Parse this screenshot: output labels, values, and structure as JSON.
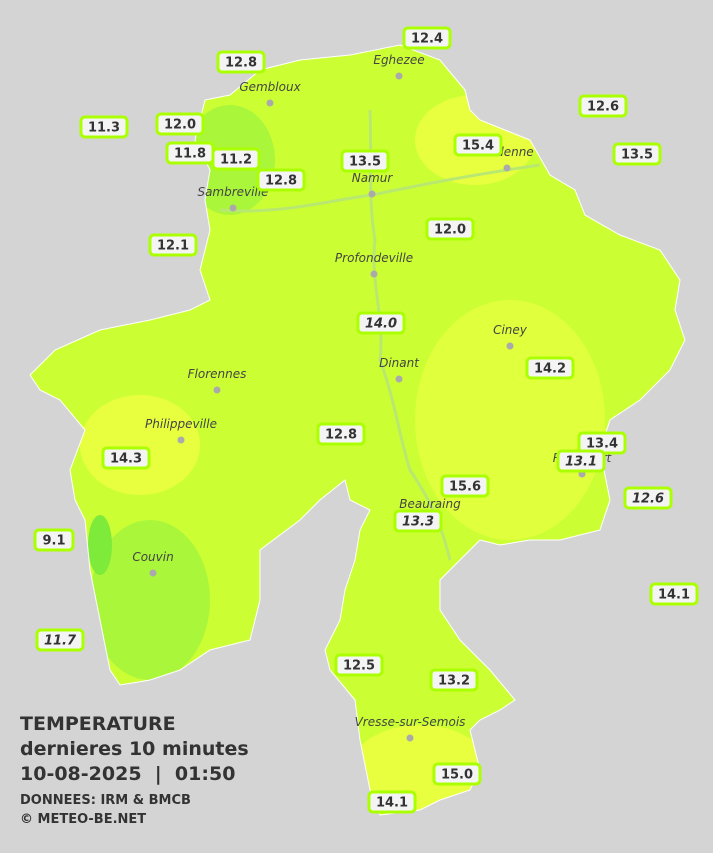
{
  "title": {
    "lines": [
      "TEMPERATURE",
      "dernieres 10 minutes",
      "10-08-2025  |  01:50"
    ],
    "credits": [
      "DONNEES: IRM & BMCB",
      "© METEO-BE.NET"
    ]
  },
  "cities": [
    "Eghezee",
    "Gembloux",
    "Andenne",
    "Namur",
    "Sambreville",
    "Profondeville",
    "Ciney",
    "Dinant",
    "Florennes",
    "Philippeville",
    "Rochefort",
    "Beauraing",
    "Couvin",
    "Vresse-sur-Semois"
  ],
  "stations": [
    {
      "value": "12.4",
      "italic": false
    },
    {
      "value": "12.8",
      "italic": false
    },
    {
      "value": "12.6",
      "italic": false
    },
    {
      "value": "11.3",
      "italic": false
    },
    {
      "value": "12.0",
      "italic": false
    },
    {
      "value": "15.4",
      "italic": false
    },
    {
      "value": "13.5",
      "italic": false
    },
    {
      "value": "11.8",
      "italic": false
    },
    {
      "value": "11.2",
      "italic": false
    },
    {
      "value": "13.5",
      "italic": false
    },
    {
      "value": "12.8",
      "italic": false
    },
    {
      "value": "12.0",
      "italic": false
    },
    {
      "value": "12.1",
      "italic": false
    },
    {
      "value": "14.0",
      "italic": true
    },
    {
      "value": "14.2",
      "italic": false
    },
    {
      "value": "12.8",
      "italic": false
    },
    {
      "value": "13.4",
      "italic": false
    },
    {
      "value": "14.3",
      "italic": false
    },
    {
      "value": "13.1",
      "italic": true
    },
    {
      "value": "15.6",
      "italic": false
    },
    {
      "value": "12.6",
      "italic": true
    },
    {
      "value": "13.3",
      "italic": true
    },
    {
      "value": "9.1",
      "italic": false
    },
    {
      "value": "14.1",
      "italic": false
    },
    {
      "value": "11.7",
      "italic": true
    },
    {
      "value": "12.5",
      "italic": false
    },
    {
      "value": "13.2",
      "italic": false
    },
    {
      "value": "15.0",
      "italic": false
    },
    {
      "value": "14.1",
      "italic": false
    }
  ]
}
